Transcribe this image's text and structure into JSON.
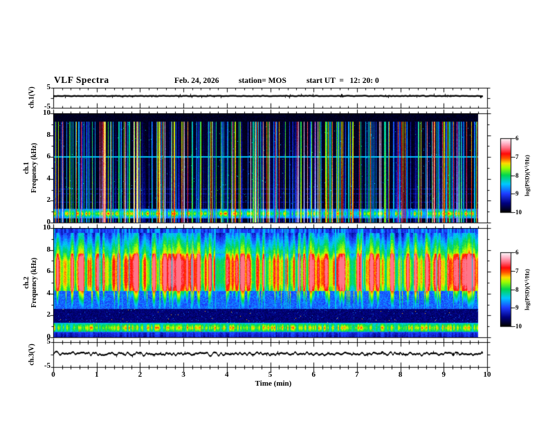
{
  "header": {
    "title": "VLF Spectra",
    "date": "Feb. 24, 2026",
    "station": "station= MOS",
    "start_ut": "start UT  =   12: 20: 0"
  },
  "axes": {
    "time": {
      "label": "Time (min)",
      "tick_labels": [
        "0",
        "1",
        "2",
        "3",
        "4",
        "5",
        "6",
        "7",
        "8",
        "9",
        "10"
      ],
      "range_min": [
        0,
        10
      ],
      "minor_ticks_per_major": 5
    },
    "ch1_voltage": {
      "label": "ch.1(V)",
      "tick_labels": [
        "5",
        "-5"
      ],
      "range_V": [
        -5,
        5
      ]
    },
    "ch1_spectrogram": {
      "label_channel": "ch.1",
      "label_axis": "Frequency (kHz)",
      "tick_labels": [
        "10",
        "8",
        "6",
        "4",
        "2",
        "0"
      ],
      "range_khz": [
        0,
        10
      ]
    },
    "ch2_spectrogram": {
      "label_channel": "ch.2",
      "label_axis": "Frequency (kHz)",
      "tick_labels": [
        "10",
        "8",
        "6",
        "4",
        "2",
        "0"
      ],
      "range_khz": [
        0,
        10
      ]
    },
    "ch3_voltage": {
      "label": "ch.3(V)",
      "tick_labels": [
        "5",
        "-5"
      ],
      "range_V": [
        -5,
        5
      ]
    }
  },
  "colorbar": {
    "label": "log(PSD)(V²/Hz)",
    "tick_labels": [
      "-6",
      "-7",
      "-8",
      "-9",
      "-10"
    ],
    "range": [
      -10,
      -6
    ],
    "gradient_stops": [
      {
        "t": 0.0,
        "color": "#000000"
      },
      {
        "t": 0.12,
        "color": "#00007d"
      },
      {
        "t": 0.25,
        "color": "#1e3cff"
      },
      {
        "t": 0.38,
        "color": "#00c8ff"
      },
      {
        "t": 0.5,
        "color": "#00d750"
      },
      {
        "t": 0.6,
        "color": "#a0ff00"
      },
      {
        "t": 0.66,
        "color": "#ffdc00"
      },
      {
        "t": 0.73,
        "color": "#ff5000"
      },
      {
        "t": 0.79,
        "color": "#ff0a0a"
      },
      {
        "t": 0.86,
        "color": "#ff6478"
      },
      {
        "t": 0.93,
        "color": "#ffb4c8"
      },
      {
        "t": 1.0,
        "color": "#ffffff"
      }
    ]
  },
  "chart_data": [
    {
      "type": "line",
      "name": "ch1_voltage_waveform",
      "ylabel": "ch.1(V)",
      "ylim": [
        -5,
        5
      ],
      "xlim": [
        0,
        10
      ],
      "xlabel": "Time (min)",
      "mean_value_V": 0.9,
      "noise_amplitude_V": 0.12,
      "description": "nearly flat thick trace slightly above 0 V for whole record",
      "data_end_min": 9.9,
      "seed": 11
    },
    {
      "type": "heatmap",
      "name": "ch1_spectrogram",
      "ylabel": "ch.1 Frequency (kHz)",
      "ylim_khz": [
        0,
        10
      ],
      "xlim_min": [
        0,
        10
      ],
      "zlabel": "log(PSD)(V²/Hz)",
      "zlim": [
        -10,
        -6
      ],
      "background_level": -9.95,
      "data_end_min": 9.8,
      "seed": 7,
      "vertical_streaks": {
        "fraction_of_columns": 0.55,
        "base_level": -9.6,
        "max_level": -7.7,
        "max_freq_khz": 9.25
      },
      "bright_band": {
        "freq_khz": [
          0.5,
          1.25
        ],
        "peak_freq_khz": 0.85,
        "level_min": -9.0,
        "level_max": -7.0
      },
      "horizontal_lines": [
        {
          "freq_khz": 6.05,
          "level": -8.55,
          "persistence": 1.0
        },
        {
          "freq_khz": 3.1,
          "level": -9.3,
          "persistence": 0.7
        },
        {
          "freq_khz": 2.65,
          "level": -9.35,
          "persistence": 0.7
        },
        {
          "freq_khz": 1.9,
          "level": -9.35,
          "persistence": 0.7
        }
      ]
    },
    {
      "type": "heatmap",
      "name": "ch2_spectrogram",
      "ylabel": "ch.2 Frequency (kHz)",
      "ylim_khz": [
        0,
        10
      ],
      "xlim_min": [
        0,
        10
      ],
      "zlabel": "log(PSD)(V²/Hz)",
      "zlim": [
        -10,
        -6
      ],
      "data_end_min": 9.8,
      "seed": 21,
      "bands": [
        {
          "freq_khz": [
            9.6,
            10.0
          ],
          "level": -9.4,
          "variation": 0.6
        },
        {
          "freq_khz": [
            7.7,
            9.6
          ],
          "level": -8.6,
          "variation": 1.0
        },
        {
          "freq_khz": [
            4.3,
            7.7
          ],
          "level": -8.35,
          "variation": 2.0,
          "comment": "intense red/orange core with flame-like vertical striations"
        },
        {
          "freq_khz": [
            2.6,
            4.3
          ],
          "level": -9.1,
          "variation": 0.5,
          "comment": "cyan spike tails descending from core"
        },
        {
          "freq_khz": [
            1.3,
            2.6
          ],
          "level": -9.7,
          "variation": 0.3
        },
        {
          "freq_khz": [
            0.52,
            1.3
          ],
          "level": -8.5,
          "variation": 1.3,
          "comment": "bright banded hiss line with red specks"
        },
        {
          "freq_khz": [
            0.0,
            0.52
          ],
          "level": -9.4,
          "variation": 0.4
        }
      ],
      "horizontal_lines": [
        {
          "freq_khz": 1.32,
          "level": -8.6,
          "persistence": 1.0
        },
        {
          "freq_khz": 0.5,
          "level": -8.9,
          "persistence": 0.9
        }
      ],
      "cyan_cut_columns_fraction": 0.035,
      "red_spike_columns_fraction": 0.06
    },
    {
      "type": "line",
      "name": "ch3_voltage_waveform",
      "ylabel": "ch.3(V)",
      "ylim": [
        -5,
        5
      ],
      "xlim": [
        0,
        10
      ],
      "xlabel": "Time (min)",
      "mean_value_V": 0.3,
      "noise_amplitude_V": 0.5,
      "description": "noisy thick trace slightly above 0 V with small spikes",
      "data_end_min": 9.9,
      "seed": 13
    }
  ]
}
